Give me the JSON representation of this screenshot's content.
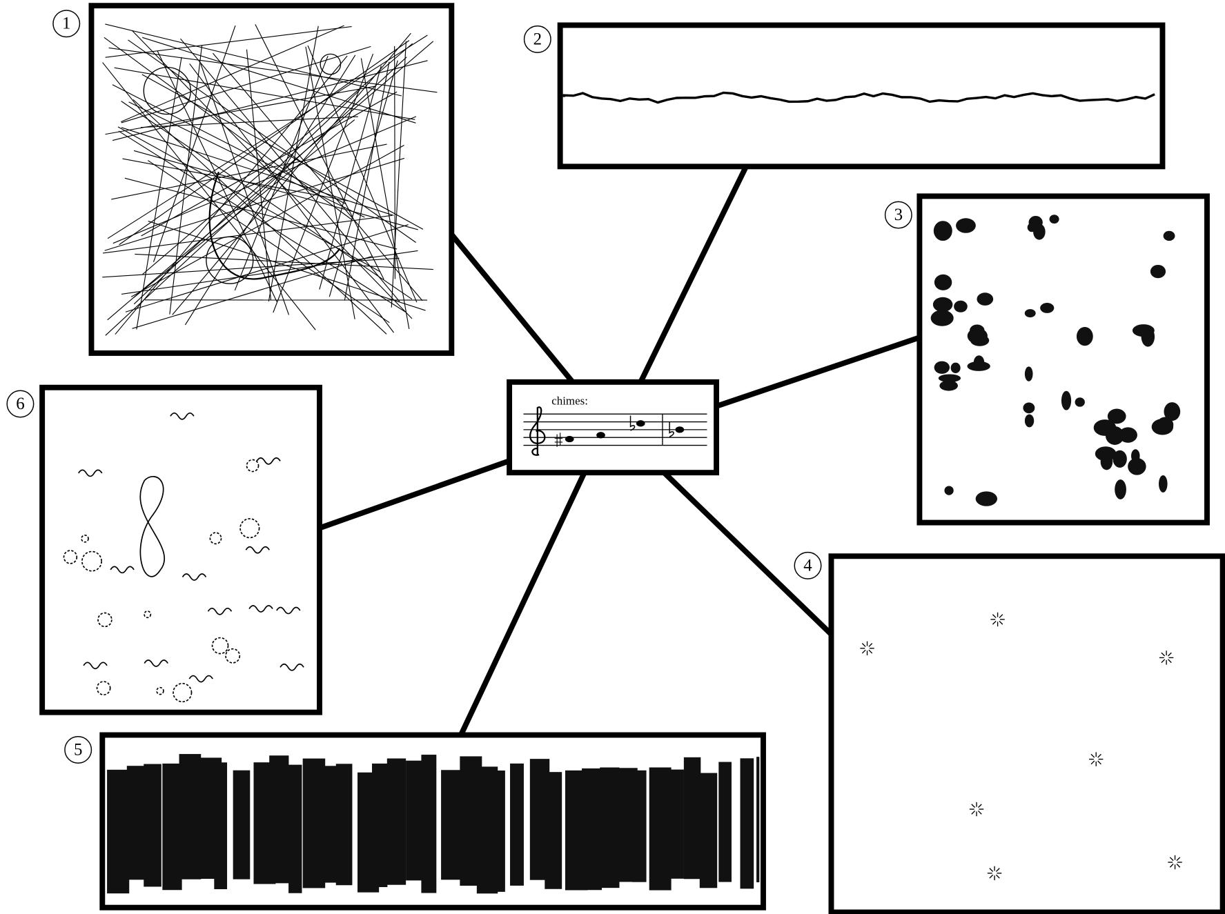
{
  "center": {
    "label": "chimes:"
  },
  "nodes": [
    {
      "label": "1"
    },
    {
      "label": "2"
    },
    {
      "label": "3"
    },
    {
      "label": "4"
    },
    {
      "label": "5"
    },
    {
      "label": "6"
    }
  ]
}
